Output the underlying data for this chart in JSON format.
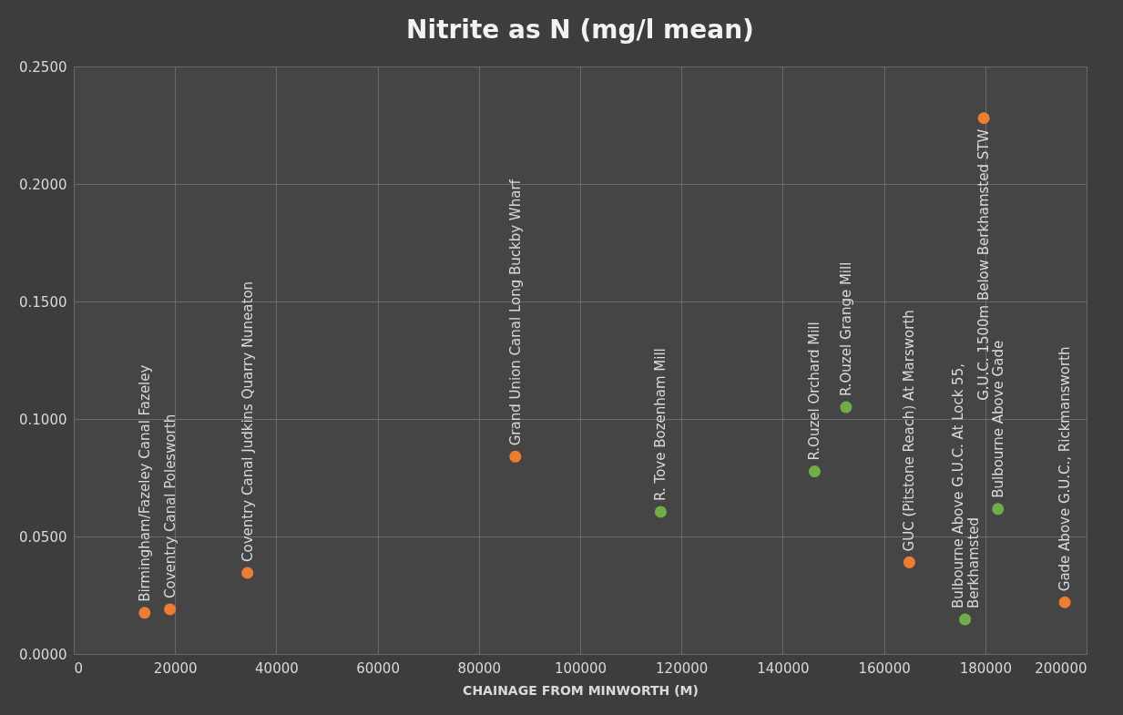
{
  "chart_data": {
    "type": "scatter",
    "title": "Nitrite as N (mg/l mean)",
    "xlabel": "CHAINAGE FROM MINWORTH (M)",
    "series": [
      {
        "color": "#ed7d31",
        "x": [
          14000,
          19000,
          34300,
          87200,
          165000,
          179700,
          195700
        ],
        "values": [
          0.0175,
          0.019,
          0.0345,
          0.084,
          0.039,
          0.228,
          0.022
        ]
      },
      {
        "color": "#70ad47",
        "x": [
          115900,
          146300,
          152500,
          176000,
          182500
        ],
        "values": [
          0.0605,
          0.0777,
          0.105,
          0.0147,
          0.0617
        ]
      }
    ],
    "annotations": [
      {
        "text": "Birmingham/Fazeley Canal Fazeley",
        "x": 14000,
        "y": 0.0175
      },
      {
        "text": "Coventry Canal Polesworth",
        "x": 19000,
        "y": 0.019
      },
      {
        "text": "Coventry Canal  Judkins Quarry Nuneaton",
        "x": 34300,
        "y": 0.0345
      },
      {
        "text": "Grand Union Canal Long Buckby Wharf",
        "x": 87200,
        "y": 0.084
      },
      {
        "text": "R. Tove Bozenham Mill",
        "x": 115900,
        "y": 0.0605
      },
      {
        "text": "R.Ouzel Orchard Mill",
        "x": 146300,
        "y": 0.0777
      },
      {
        "text": "R.Ouzel Grange Mill",
        "x": 152500,
        "y": 0.105
      },
      {
        "text": "GUC (Pitstone Reach) At Marsworth",
        "x": 165000,
        "y": 0.039
      },
      {
        "text": "Bulbourne Above G.U.C. At Lock 55,\nBerkhamsted",
        "x": 176000,
        "y": 0.0147
      },
      {
        "text": "G.U.C. 1500m Below Berkhamsted STW",
        "x": 179700,
        "y": 0.228
      },
      {
        "text": "Bulbourne Above Gade",
        "x": 182500,
        "y": 0.0617
      },
      {
        "text": "Gade Above G.U.C., Rickmansworth",
        "x": 195700,
        "y": 0.022
      }
    ],
    "xlim": [
      0,
      200000
    ],
    "xticks": [
      0,
      20000,
      40000,
      60000,
      80000,
      100000,
      120000,
      140000,
      160000,
      180000,
      200000
    ],
    "ylim": [
      0,
      0.25
    ],
    "yticks": [
      {
        "value": 0,
        "label": "0.0000"
      },
      {
        "value": 0.05,
        "label": "0.0500"
      },
      {
        "value": 0.1,
        "label": "0.1000"
      },
      {
        "value": 0.15,
        "label": "0.1500"
      },
      {
        "value": 0.2,
        "label": "0.2000"
      },
      {
        "value": 0.25,
        "label": "0.2500"
      }
    ],
    "grid": true,
    "marker": "circle"
  }
}
